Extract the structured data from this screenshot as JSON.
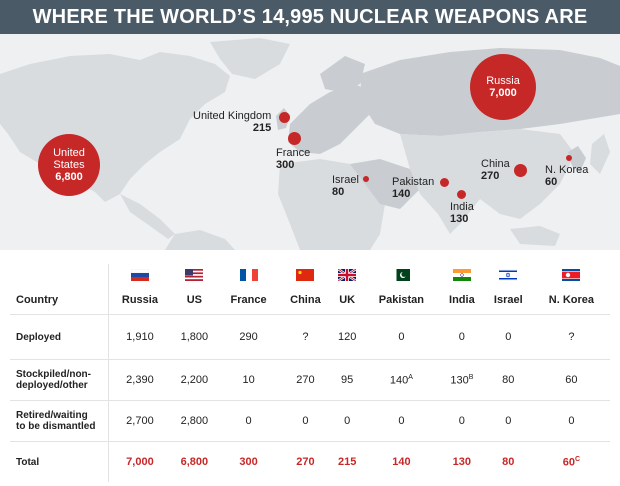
{
  "title": "WHERE THE WORLD’S 14,995 NUCLEAR WEAPONS ARE",
  "map": {
    "labels": [
      {
        "id": "us",
        "name": "United\nStates",
        "value": "6,800"
      },
      {
        "id": "uk",
        "name": "United Kingdom",
        "value": "215"
      },
      {
        "id": "france",
        "name": "France",
        "value": "300"
      },
      {
        "id": "israel",
        "name": "Israel",
        "value": "80"
      },
      {
        "id": "pakistan",
        "name": "Pakistan",
        "value": "140"
      },
      {
        "id": "india",
        "name": "India",
        "value": "130"
      },
      {
        "id": "china",
        "name": "China",
        "value": "270"
      },
      {
        "id": "nkorea",
        "name": "N. Korea",
        "value": "60"
      },
      {
        "id": "russia",
        "name": "Russia",
        "value": "7,000"
      }
    ],
    "colors": {
      "marker": "#c62828",
      "land": "#d9dcdf",
      "ocean": "#eef0f2"
    }
  },
  "table": {
    "country_label": "Country",
    "countries": [
      {
        "name": "Russia",
        "flag": "russia-flag"
      },
      {
        "name": "US",
        "flag": "us-flag"
      },
      {
        "name": "France",
        "flag": "france-flag"
      },
      {
        "name": "China",
        "flag": "china-flag"
      },
      {
        "name": "UK",
        "flag": "uk-flag"
      },
      {
        "name": "Pakistan",
        "flag": "pakistan-flag"
      },
      {
        "name": "India",
        "flag": "india-flag"
      },
      {
        "name": "Israel",
        "flag": "israel-flag"
      },
      {
        "name": "N. Korea",
        "flag": "nkorea-flag"
      }
    ],
    "rows": [
      {
        "label": "Deployed",
        "values": [
          "1,910",
          "1,800",
          "290",
          "?",
          "120",
          "0",
          "0",
          "0",
          "?"
        ]
      },
      {
        "label": "Stockpiled/non-\ndeployed/other",
        "values": [
          "2,390",
          "2,200",
          "10",
          "270",
          "95",
          "140",
          "130",
          "80",
          "60"
        ],
        "sups": [
          "",
          "",
          "",
          "",
          "",
          "A",
          "B",
          "",
          ""
        ]
      },
      {
        "label": "Retired/waiting\nto be dismantled",
        "values": [
          "2,700",
          "2,800",
          "0",
          "0",
          "0",
          "0",
          "0",
          "0",
          "0"
        ]
      },
      {
        "label": "Total",
        "values": [
          "7,000",
          "6,800",
          "300",
          "270",
          "215",
          "140",
          "130",
          "80",
          "60"
        ],
        "sups": [
          "",
          "",
          "",
          "",
          "",
          "",
          "",
          "",
          "C"
        ]
      }
    ]
  }
}
